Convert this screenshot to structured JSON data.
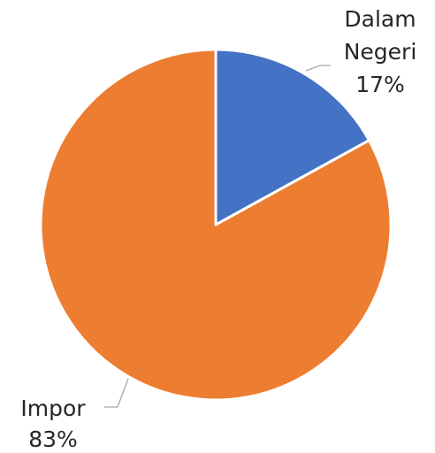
{
  "chart_data": {
    "type": "pie",
    "slices": [
      {
        "label_lines": [
          "Dalam",
          "Negeri"
        ],
        "value": 17,
        "value_label": "17%",
        "color": "#4472C4"
      },
      {
        "label_lines": [
          "Impor"
        ],
        "value": 83,
        "value_label": "83%",
        "color": "#ED7D31"
      }
    ],
    "start_angle": "12 o'clock",
    "direction": "clockwise",
    "legend": "none"
  }
}
